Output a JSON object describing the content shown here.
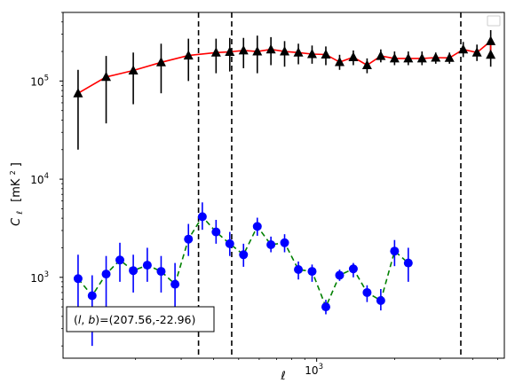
{
  "chart_data": {
    "type": "scatter",
    "xlabel": "ℓ",
    "ylabel": "C",
    "ylabel_sub": "ℓ",
    "ylabel_unit": "[mK",
    "ylabel_unit_sup": "2",
    "ylabel_unit_end": "]",
    "xscale": "log",
    "yscale": "log",
    "xlim": [
      105,
      5300
    ],
    "ylim": [
      150,
      500000
    ],
    "xticks": [
      {
        "value": 1000,
        "base": "10",
        "exp": "3"
      }
    ],
    "yticks": [
      {
        "value": 1000,
        "base": "10",
        "exp": "3"
      },
      {
        "value": 10000,
        "base": "10",
        "exp": "4"
      },
      {
        "value": 100000,
        "base": "10",
        "exp": "5"
      }
    ],
    "legend": "top-right, empty",
    "vlines": [
      350,
      470,
      3600
    ],
    "annotation": {
      "text": "(l, b)=(207.56,-22.96)",
      "prefix": "(",
      "l": "l",
      "comma": ", ",
      "b": "b",
      "values": ")=(207.56,-22.96)"
    },
    "x": [
      120,
      136,
      154,
      174,
      196,
      222,
      251,
      284,
      320,
      362,
      409,
      462,
      522,
      590,
      666,
      752,
      850,
      960,
      1085,
      1226,
      1385,
      1565,
      1768,
      1998,
      2257,
      2550,
      2881,
      3255,
      3678,
      4155,
      4695
    ],
    "series": [
      {
        "color": "#000000",
        "line_color": "#ff0000",
        "line_style": "solid",
        "marker": "triangle",
        "values": [
          75000,
          110000,
          128000,
          155000,
          182000,
          195000,
          198000,
          205000,
          200000,
          210000,
          200000,
          195000,
          188000,
          186000,
          156000,
          175000,
          145000,
          180000,
          170000,
          170000,
          170000,
          173000,
          172000,
          210000,
          195000,
          255000,
          185000
        ],
        "x_index": [
          0,
          2,
          4,
          6,
          8,
          10,
          11,
          12,
          13,
          14,
          15,
          16,
          17,
          18,
          19,
          20,
          21,
          22,
          23,
          24,
          25,
          26,
          27,
          28,
          29,
          30,
          30
        ],
        "err_low": [
          20000,
          37000,
          58000,
          75000,
          100000,
          120000,
          125000,
          135000,
          120000,
          145000,
          140000,
          148000,
          150000,
          145000,
          130000,
          145000,
          120000,
          155000,
          145000,
          145000,
          145000,
          150000,
          150000,
          175000,
          160000,
          195000,
          140000
        ],
        "err_high": [
          130000,
          180000,
          195000,
          240000,
          270000,
          270000,
          275000,
          275000,
          290000,
          280000,
          255000,
          240000,
          230000,
          225000,
          185000,
          205000,
          170000,
          210000,
          200000,
          200000,
          200000,
          195000,
          195000,
          250000,
          235000,
          330000,
          230000
        ]
      },
      {
        "color": "#0000ff",
        "line_color": "#008000",
        "line_style": "dashed",
        "marker": "circle",
        "values": [
          970,
          650,
          1080,
          1500,
          1170,
          1330,
          1150,
          850,
          2450,
          4150,
          2900,
          2200,
          1700,
          3300,
          2150,
          2250,
          1200,
          1150,
          500,
          1050,
          1220,
          700,
          580,
          1850,
          1400
        ],
        "err_low": [
          300,
          200,
          480,
          900,
          700,
          900,
          700,
          450,
          1650,
          3050,
          2200,
          1650,
          1280,
          2650,
          1800,
          1800,
          950,
          900,
          420,
          920,
          1000,
          560,
          460,
          1300,
          900
        ],
        "err_high": [
          1700,
          1050,
          1650,
          2250,
          1700,
          2000,
          1650,
          1400,
          3500,
          5800,
          3850,
          2900,
          2200,
          4050,
          2600,
          2750,
          1450,
          1350,
          590,
          1200,
          1400,
          830,
          760,
          2400,
          2000
        ]
      }
    ]
  }
}
